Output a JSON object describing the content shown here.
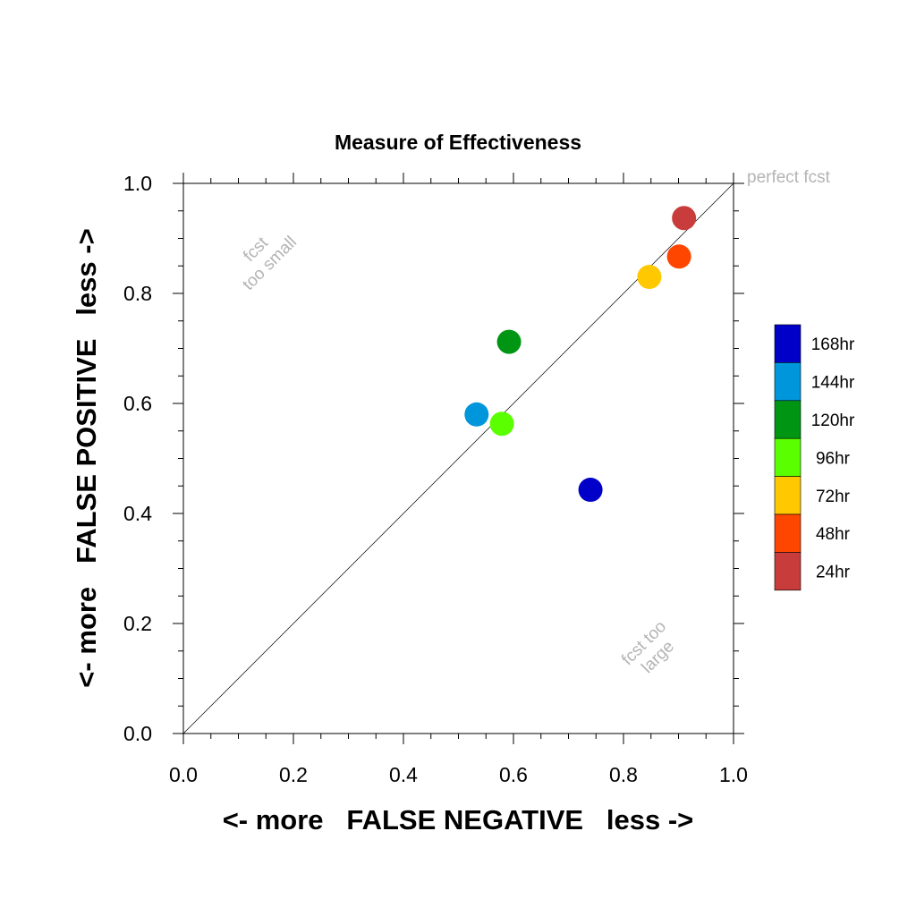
{
  "chart_data": {
    "type": "scatter",
    "title": "Measure of Effectiveness",
    "xlabel": "<- more   FALSE NEGATIVE   less ->",
    "ylabel": "<- more   FALSE POSITIVE   less ->",
    "xlim": [
      0.0,
      1.0
    ],
    "ylim": [
      0.0,
      1.0
    ],
    "x_ticks": [
      "0.0",
      "0.2",
      "0.4",
      "0.6",
      "0.8",
      "1.0"
    ],
    "y_ticks": [
      "0.0",
      "0.2",
      "0.4",
      "0.6",
      "0.8",
      "1.0"
    ],
    "grid": false,
    "reference_line": {
      "from": [
        0.0,
        0.0
      ],
      "to": [
        1.0,
        1.0
      ]
    },
    "annotations": {
      "perfect": "perfect fcst",
      "too_small": [
        "fcst",
        "too small"
      ],
      "too_large": [
        "fcst too",
        "large"
      ]
    },
    "series": [
      {
        "name": "168hr",
        "color": "#0000c8",
        "x": 0.74,
        "y": 0.443
      },
      {
        "name": "144hr",
        "color": "#0096dc",
        "x": 0.533,
        "y": 0.58
      },
      {
        "name": "120hr",
        "color": "#009614",
        "x": 0.592,
        "y": 0.712
      },
      {
        "name": "96hr",
        "color": "#5aff00",
        "x": 0.579,
        "y": 0.563
      },
      {
        "name": "72hr",
        "color": "#ffc800",
        "x": 0.847,
        "y": 0.83
      },
      {
        "name": "48hr",
        "color": "#ff4600",
        "x": 0.901,
        "y": 0.867
      },
      {
        "name": "24hr",
        "color": "#c83c3c",
        "x": 0.91,
        "y": 0.937
      }
    ],
    "legend_position": "right"
  }
}
